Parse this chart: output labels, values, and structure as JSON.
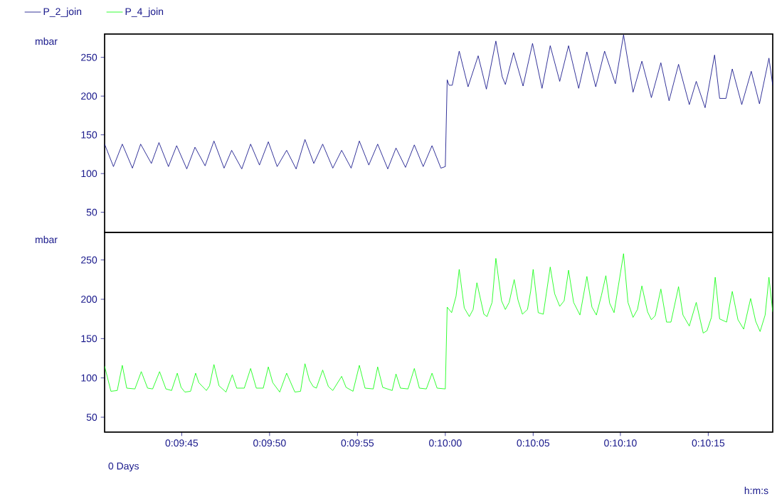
{
  "chart_data": [
    {
      "type": "line",
      "ylabel": "mbar",
      "legend": "top left",
      "tick_labels": "y",
      "xlim": [
        0.16128,
        0.17185
      ],
      "ylim": [
        24,
        280
      ],
      "yticks": [
        50,
        100,
        150,
        200,
        250
      ],
      "series": [
        {
          "name": "P_2_join",
          "color": "#000080",
          "x": [
            0.16128,
            0.16142,
            0.16156,
            0.16172,
            0.16185,
            0.16202,
            0.16214,
            0.16229,
            0.16242,
            0.16258,
            0.16271,
            0.16287,
            0.16301,
            0.16317,
            0.16329,
            0.16345,
            0.16359,
            0.16373,
            0.16387,
            0.16401,
            0.16416,
            0.16431,
            0.16445,
            0.16459,
            0.16473,
            0.16489,
            0.16503,
            0.16518,
            0.16531,
            0.16546,
            0.1656,
            0.16576,
            0.16589,
            0.16604,
            0.16618,
            0.16632,
            0.16646,
            0.1666,
            0.16667,
            0.1667,
            0.16673,
            0.16678,
            0.16689,
            0.16703,
            0.16719,
            0.16732,
            0.16747,
            0.16757,
            0.16762,
            0.16775,
            0.1679,
            0.16805,
            0.1682,
            0.16833,
            0.16848,
            0.16862,
            0.16878,
            0.16891,
            0.16905,
            0.16919,
            0.16936,
            0.16949,
            0.16964,
            0.16978,
            0.16993,
            0.17008,
            0.17021,
            0.17036,
            0.17053,
            0.17064,
            0.17078,
            0.17093,
            0.17101,
            0.17111,
            0.17121,
            0.17136,
            0.17151,
            0.17164,
            0.17179,
            0.17185
          ],
          "values": [
            138,
            109,
            138,
            107,
            138,
            113,
            140,
            109,
            136,
            106,
            134,
            110,
            142,
            107,
            130,
            106,
            138,
            111,
            141,
            109,
            130,
            106,
            144,
            113,
            138,
            107,
            130,
            107,
            142,
            111,
            138,
            106,
            133,
            108,
            137,
            109,
            136,
            107,
            109,
            221,
            214,
            214,
            258,
            212,
            252,
            209,
            271,
            225,
            215,
            256,
            213,
            268,
            210,
            265,
            219,
            265,
            210,
            257,
            212,
            258,
            216,
            279,
            205,
            245,
            198,
            243,
            194,
            241,
            189,
            219,
            185,
            253,
            197,
            197,
            235,
            189,
            232,
            190,
            249,
            214
          ]
        }
      ]
    },
    {
      "type": "line",
      "ylabel": "mbar",
      "xlabel": "h:m:s",
      "legend": "top left",
      "annotations": [
        "0 Days"
      ],
      "xlim": [
        0.16128,
        0.17185
      ],
      "ylim": [
        31,
        285
      ],
      "yticks": [
        50,
        100,
        150,
        200,
        250
      ],
      "xticks": [
        {
          "value": 0.1625,
          "label": "0:09:45"
        },
        {
          "value": 0.16389,
          "label": "0:09:50"
        },
        {
          "value": 0.16528,
          "label": "0:09:55"
        },
        {
          "value": 0.16667,
          "label": "0:10:00"
        },
        {
          "value": 0.16806,
          "label": "0:10:05"
        },
        {
          "value": 0.16944,
          "label": "0:10:10"
        },
        {
          "value": 0.17083,
          "label": "0:10:15"
        }
      ],
      "series": [
        {
          "name": "P_4_join",
          "color": "#00ff00",
          "x": [
            0.16128,
            0.16138,
            0.16148,
            0.16156,
            0.16163,
            0.16176,
            0.16186,
            0.16196,
            0.16204,
            0.16215,
            0.16225,
            0.16234,
            0.16243,
            0.16249,
            0.16255,
            0.16264,
            0.16272,
            0.16277,
            0.16289,
            0.16294,
            0.16301,
            0.16309,
            0.1632,
            0.1633,
            0.16337,
            0.16349,
            0.16359,
            0.16368,
            0.16379,
            0.16387,
            0.16394,
            0.16405,
            0.16416,
            0.16429,
            0.16438,
            0.16445,
            0.16452,
            0.16458,
            0.16463,
            0.16473,
            0.16482,
            0.16489,
            0.16503,
            0.1651,
            0.16521,
            0.16531,
            0.1654,
            0.16553,
            0.1656,
            0.16568,
            0.16583,
            0.16589,
            0.16596,
            0.16608,
            0.16618,
            0.16626,
            0.16637,
            0.16646,
            0.16654,
            0.16667,
            0.1667,
            0.16677,
            0.16684,
            0.16689,
            0.16697,
            0.16705,
            0.16711,
            0.16717,
            0.16728,
            0.16733,
            0.16741,
            0.16747,
            0.16756,
            0.16762,
            0.16768,
            0.16776,
            0.16782,
            0.16789,
            0.16797,
            0.16802,
            0.16806,
            0.16814,
            0.16822,
            0.16833,
            0.1684,
            0.16848,
            0.16855,
            0.16862,
            0.1687,
            0.1688,
            0.16891,
            0.16899,
            0.16906,
            0.16914,
            0.16921,
            0.16927,
            0.16934,
            0.16949,
            0.16956,
            0.16964,
            0.16971,
            0.16978,
            0.16987,
            0.16993,
            0.16999,
            0.17008,
            0.17017,
            0.17024,
            0.17036,
            0.17043,
            0.17053,
            0.17064,
            0.17075,
            0.17081,
            0.17088,
            0.17094,
            0.17101,
            0.17112,
            0.17121,
            0.1713,
            0.17139,
            0.1715,
            0.17158,
            0.17165,
            0.17173,
            0.17179,
            0.17185
          ],
          "values": [
            115,
            83,
            84,
            116,
            87,
            86,
            108,
            87,
            86,
            108,
            86,
            84,
            106,
            88,
            82,
            83,
            106,
            94,
            84,
            90,
            117,
            90,
            82,
            104,
            87,
            87,
            112,
            87,
            87,
            114,
            94,
            82,
            106,
            82,
            83,
            118,
            97,
            89,
            87,
            110,
            89,
            84,
            102,
            88,
            83,
            116,
            87,
            86,
            114,
            88,
            84,
            105,
            87,
            86,
            112,
            87,
            86,
            106,
            87,
            86,
            190,
            183,
            204,
            238,
            189,
            178,
            187,
            221,
            181,
            178,
            196,
            252,
            198,
            187,
            196,
            225,
            199,
            181,
            187,
            210,
            238,
            183,
            181,
            241,
            207,
            191,
            198,
            237,
            196,
            180,
            229,
            190,
            180,
            205,
            230,
            195,
            183,
            258,
            196,
            177,
            187,
            217,
            184,
            174,
            179,
            213,
            171,
            171,
            216,
            180,
            166,
            196,
            157,
            160,
            177,
            228,
            175,
            171,
            210,
            174,
            162,
            201,
            172,
            159,
            180,
            228,
            184
          ]
        }
      ]
    }
  ]
}
